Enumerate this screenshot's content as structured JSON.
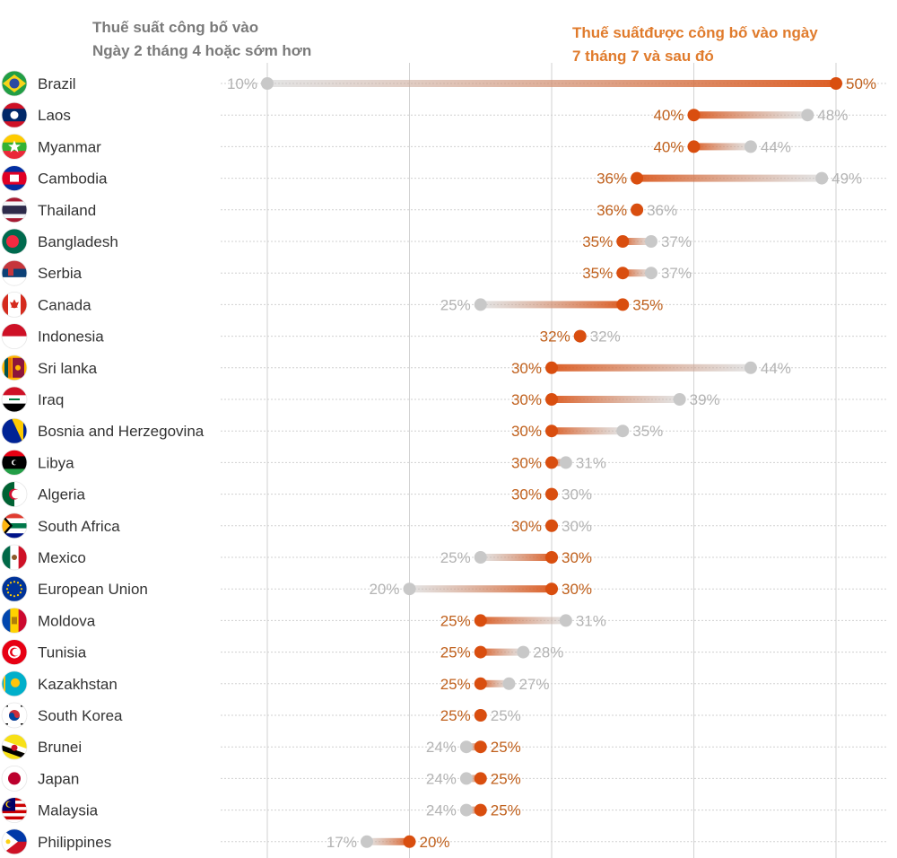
{
  "legend": {
    "old_line1": "Thuế suất công bố vào",
    "old_line2": "Ngày 2 tháng 4 hoặc sớm hơn",
    "new_line1": "Thuế suấtđược công bố vào ngày",
    "new_line2": "7 tháng 7 và sau đó"
  },
  "colors": {
    "old": "#c8c8c8",
    "new": "#d94e0f",
    "old_text": "#b3b3b3",
    "new_text": "#c0601c",
    "grid": "#d2d2d2",
    "country_text": "#333333"
  },
  "chart_data": {
    "type": "dumbbell",
    "x_range": [
      10,
      50
    ],
    "x_gridlines": [
      10,
      20,
      30,
      40,
      50
    ],
    "value_suffix": "%",
    "rows": [
      {
        "country": "Brazil",
        "flag": "brazil-flag-icon",
        "old": 10,
        "new": 50,
        "old_label": "10%",
        "new_label": "50%"
      },
      {
        "country": "Laos",
        "flag": "laos-flag-icon",
        "old": 48,
        "new": 40,
        "old_label": "48%",
        "new_label": "40%"
      },
      {
        "country": "Myanmar",
        "flag": "myanmar-flag-icon",
        "old": 44,
        "new": 40,
        "old_label": "44%",
        "new_label": "40%"
      },
      {
        "country": "Cambodia",
        "flag": "cambodia-flag-icon",
        "old": 49,
        "new": 36,
        "old_label": "49%",
        "new_label": "36%"
      },
      {
        "country": "Thailand",
        "flag": "thailand-flag-icon",
        "old": 36,
        "new": 36,
        "old_label": "36%",
        "new_label": "36%"
      },
      {
        "country": "Bangladesh",
        "flag": "bangladesh-flag-icon",
        "old": 37,
        "new": 35,
        "old_label": "37%",
        "new_label": "35%"
      },
      {
        "country": "Serbia",
        "flag": "serbia-flag-icon",
        "old": 37,
        "new": 35,
        "old_label": "37%",
        "new_label": "35%"
      },
      {
        "country": "Canada",
        "flag": "canada-flag-icon",
        "old": 25,
        "new": 35,
        "old_label": "25%",
        "new_label": "35%"
      },
      {
        "country": "Indonesia",
        "flag": "indonesia-flag-icon",
        "old": 32,
        "new": 32,
        "old_label": "32%",
        "new_label": "32%"
      },
      {
        "country": "Sri lanka",
        "flag": "sri-lanka-flag-icon",
        "old": 44,
        "new": 30,
        "old_label": "44%",
        "new_label": "30%"
      },
      {
        "country": "Iraq",
        "flag": "iraq-flag-icon",
        "old": 39,
        "new": 30,
        "old_label": "39%",
        "new_label": "30%"
      },
      {
        "country": "Bosnia and Herzegovina",
        "flag": "bosnia-flag-icon",
        "old": 35,
        "new": 30,
        "old_label": "35%",
        "new_label": "30%"
      },
      {
        "country": "Libya",
        "flag": "libya-flag-icon",
        "old": 31,
        "new": 30,
        "old_label": "31%",
        "new_label": "30%"
      },
      {
        "country": "Algeria",
        "flag": "algeria-flag-icon",
        "old": 30,
        "new": 30,
        "old_label": "30%",
        "new_label": "30%"
      },
      {
        "country": "South Africa",
        "flag": "south-africa-flag-icon",
        "old": 30,
        "new": 30,
        "old_label": "30%",
        "new_label": "30%"
      },
      {
        "country": "Mexico",
        "flag": "mexico-flag-icon",
        "old": 25,
        "new": 30,
        "old_label": "25%",
        "new_label": "30%"
      },
      {
        "country": "European Union",
        "flag": "eu-flag-icon",
        "old": 20,
        "new": 30,
        "old_label": "20%",
        "new_label": "30%"
      },
      {
        "country": "Moldova",
        "flag": "moldova-flag-icon",
        "old": 31,
        "new": 25,
        "old_label": "31%",
        "new_label": "25%"
      },
      {
        "country": "Tunisia",
        "flag": "tunisia-flag-icon",
        "old": 28,
        "new": 25,
        "old_label": "28%",
        "new_label": "25%"
      },
      {
        "country": "Kazakhstan",
        "flag": "kazakhstan-flag-icon",
        "old": 27,
        "new": 25,
        "old_label": "27%",
        "new_label": "25%"
      },
      {
        "country": "South Korea",
        "flag": "south-korea-flag-icon",
        "old": 25,
        "new": 25,
        "old_label": "25%",
        "new_label": "25%"
      },
      {
        "country": "Brunei",
        "flag": "brunei-flag-icon",
        "old": 24,
        "new": 25,
        "old_label": "24%",
        "new_label": "25%"
      },
      {
        "country": "Japan",
        "flag": "japan-flag-icon",
        "old": 24,
        "new": 25,
        "old_label": "24%",
        "new_label": "25%"
      },
      {
        "country": "Malaysia",
        "flag": "malaysia-flag-icon",
        "old": 24,
        "new": 25,
        "old_label": "24%",
        "new_label": "25%"
      },
      {
        "country": "Philippines",
        "flag": "philippines-flag-icon",
        "old": 17,
        "new": 20,
        "old_label": "17%",
        "new_label": "20%"
      }
    ]
  }
}
